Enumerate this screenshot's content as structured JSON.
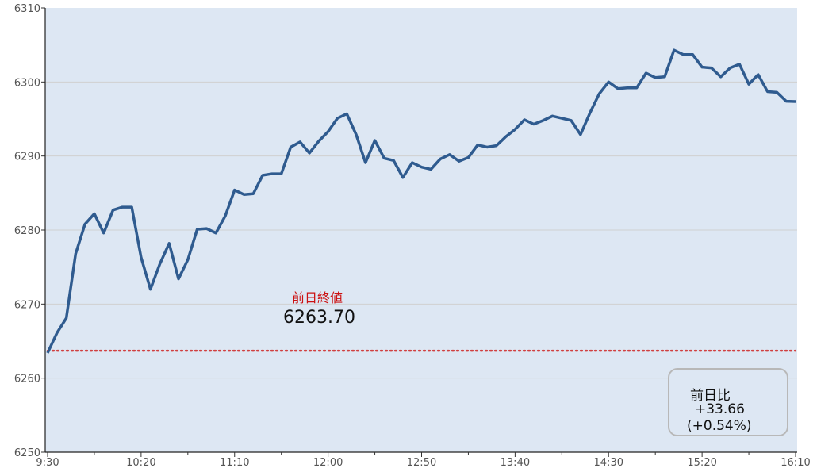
{
  "chart_data": {
    "type": "line",
    "title": "",
    "xlabel": "",
    "ylabel": "",
    "ylim": [
      6250,
      6310
    ],
    "yticks": [
      6250,
      6260,
      6270,
      6280,
      6290,
      6300,
      6310
    ],
    "xrange": [
      "9:30",
      "16:10"
    ],
    "xticks": [
      "9:30",
      "10:20",
      "11:10",
      "12:00",
      "12:50",
      "13:40",
      "14:30",
      "15:20",
      "16:10"
    ],
    "interval_minutes": 5,
    "grid": true,
    "series": [
      {
        "values": [
          6263.4,
          6266.1,
          6268.1,
          6276.8,
          6280.8,
          6282.2,
          6279.6,
          6282.7,
          6283.1,
          6283.1,
          6276.3,
          6272.0,
          6275.4,
          6278.2,
          6273.4,
          6276.0,
          6280.1,
          6280.2,
          6279.6,
          6281.9,
          6285.4,
          6284.8,
          6284.9,
          6287.4,
          6287.6,
          6287.6,
          6291.2,
          6291.9,
          6290.4,
          6292.0,
          6293.3,
          6295.1,
          6295.7,
          6292.9,
          6289.1,
          6292.1,
          6289.7,
          6289.4,
          6287.1,
          6289.1,
          6288.5,
          6288.2,
          6289.6,
          6290.2,
          6289.3,
          6289.8,
          6291.5,
          6291.2,
          6291.4,
          6292.6,
          6293.6,
          6294.9,
          6294.3,
          6294.8,
          6295.4,
          6295.1,
          6294.8,
          6292.9,
          6295.8,
          6298.4,
          6300.0,
          6299.1,
          6299.2,
          6299.2,
          6301.2,
          6300.6,
          6300.7,
          6304.3,
          6303.7,
          6303.7,
          6302.0,
          6301.9,
          6300.7,
          6301.9,
          6302.4,
          6299.7,
          6301.0,
          6298.7,
          6298.6,
          6297.4,
          6297.36
        ]
      }
    ],
    "reference_line": {
      "value": 6263.7,
      "label": "前日終値",
      "value_text": "6263.70"
    },
    "annotation": {
      "label": "前日比",
      "change": "+33.66",
      "percent": "(+0.54%)"
    },
    "colors": {
      "line": "#2f5b8f",
      "background": "#dde7f3",
      "reference": "#d04040",
      "grid": "#d0d0d0"
    }
  }
}
